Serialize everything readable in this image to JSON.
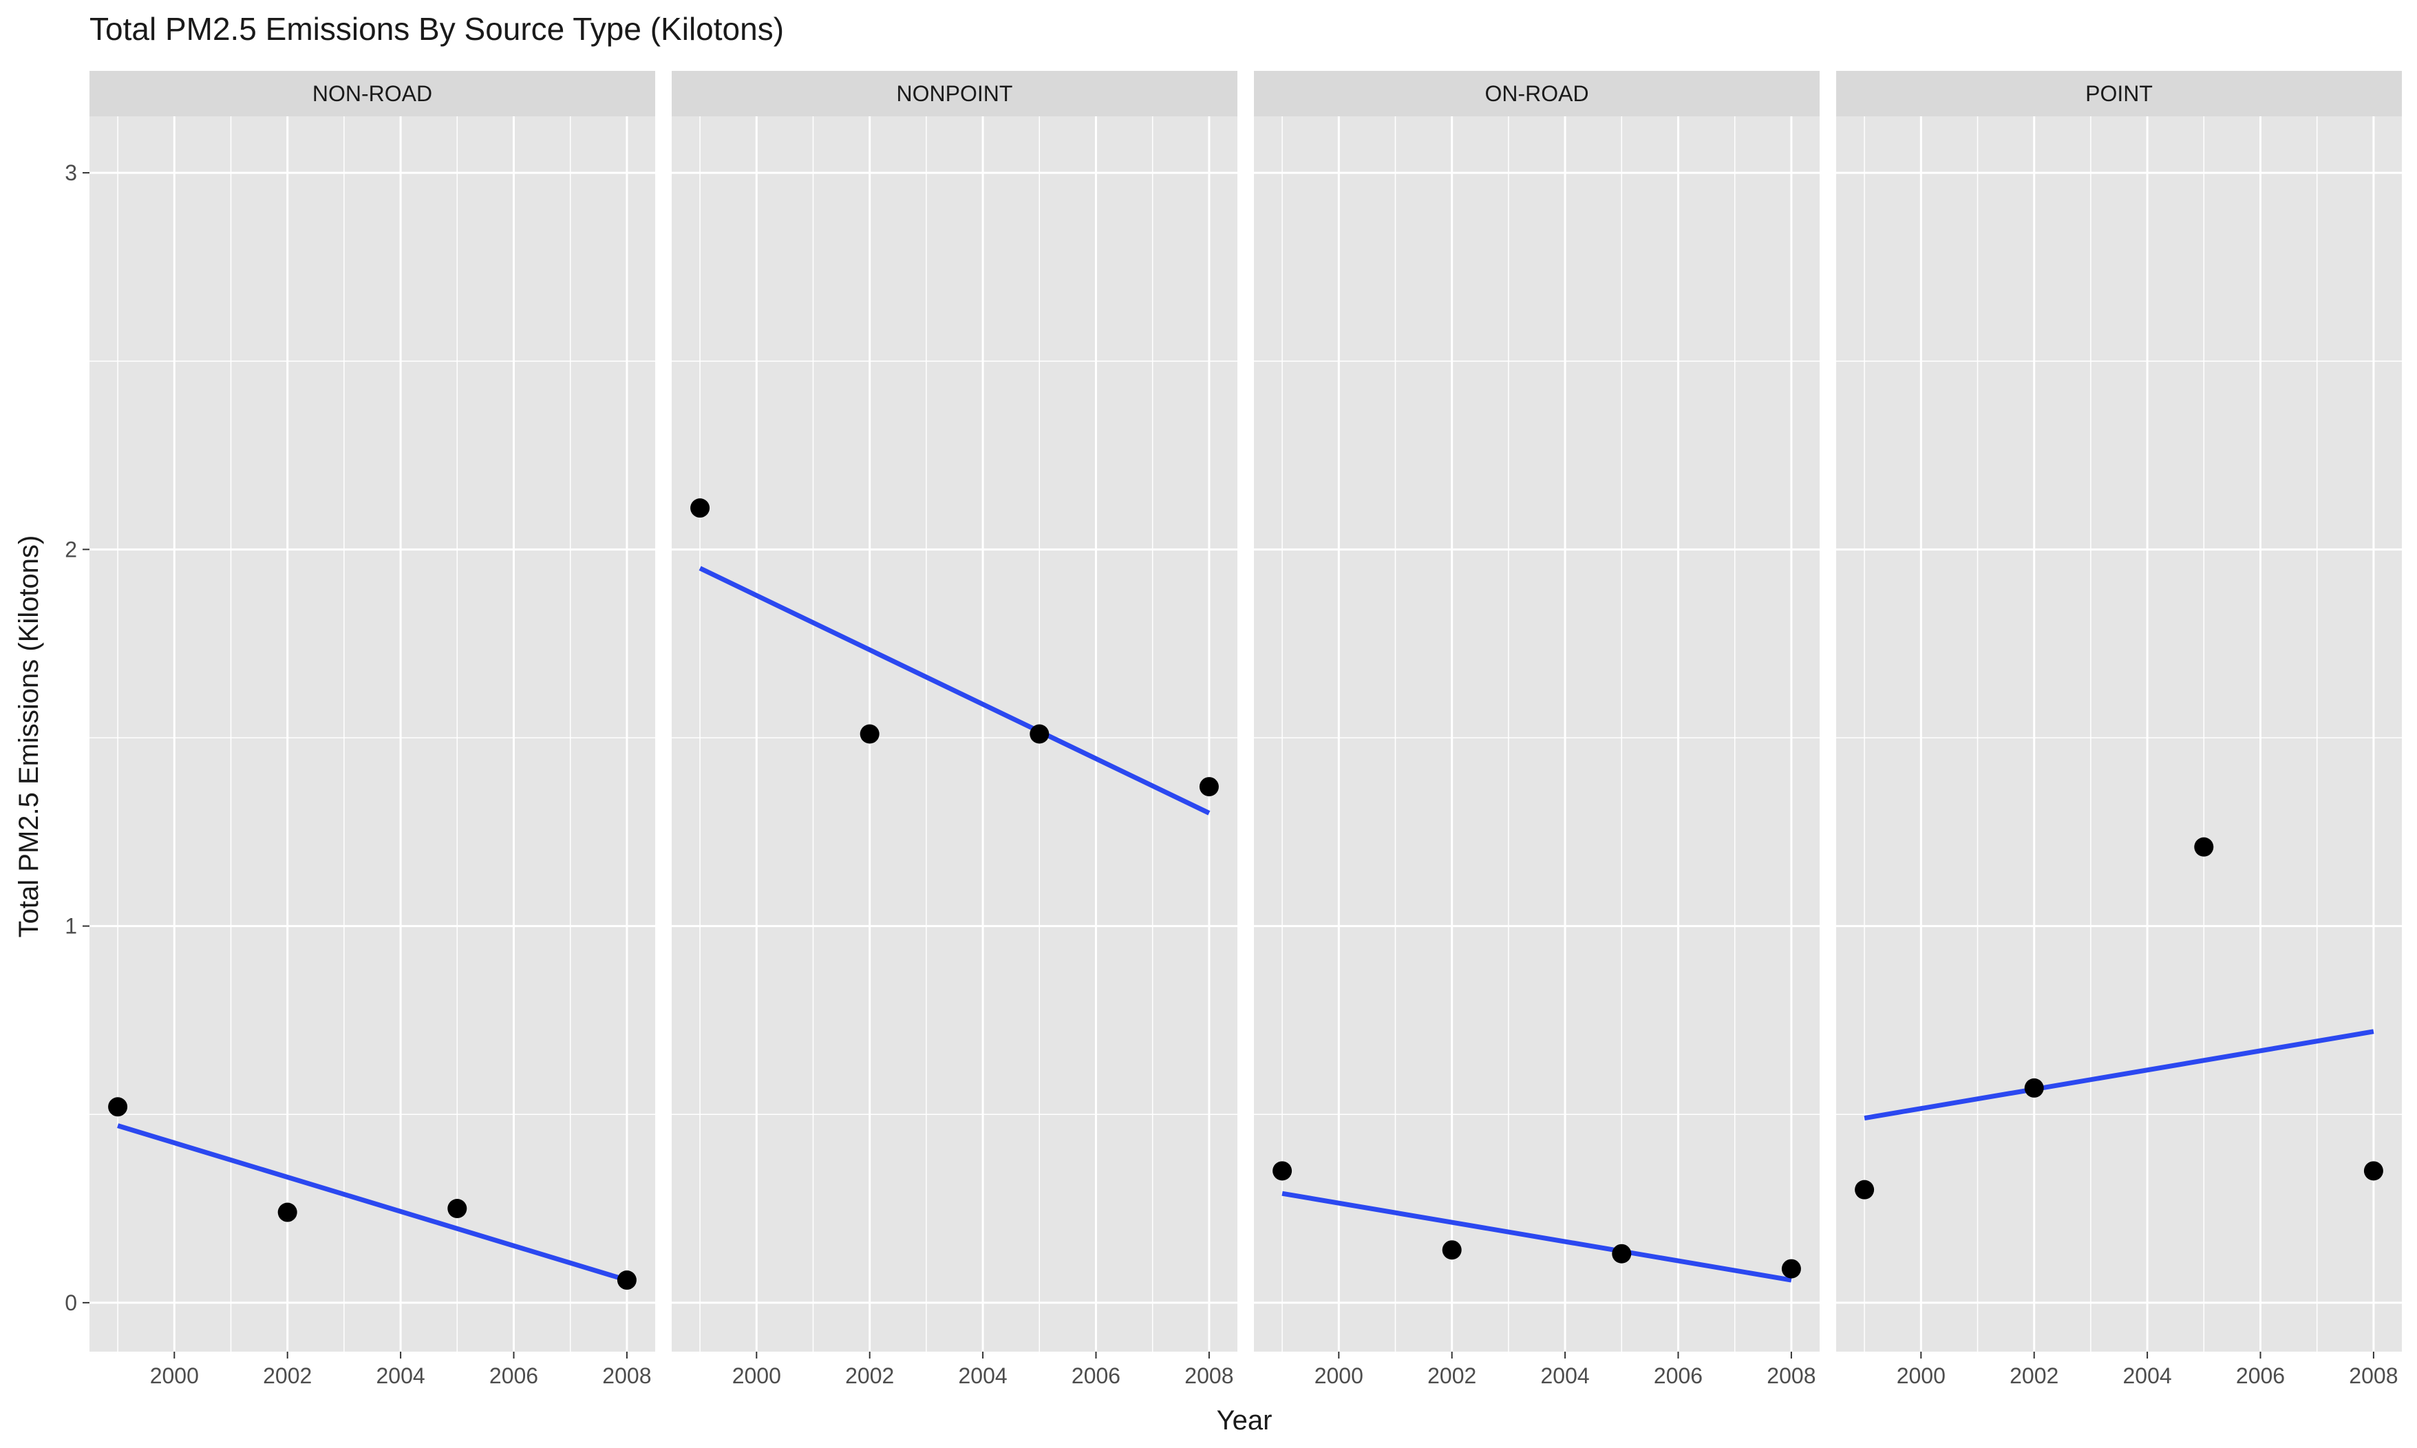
{
  "chart_data": {
    "type": "scatter",
    "title": "Total PM2.5 Emissions By Source Type (Kilotons)",
    "xlabel": "Year",
    "ylabel": "Total PM2.5 Emissions (Kilotons)",
    "xlim": [
      1998.5,
      2008.5
    ],
    "ylim": [
      -0.13,
      3.15
    ],
    "x_ticks": [
      2000,
      2002,
      2004,
      2006,
      2008
    ],
    "y_ticks": [
      0,
      1,
      2,
      3
    ],
    "x_tick_labels": [
      "2000",
      "2002",
      "2004",
      "2006",
      "2008"
    ],
    "y_tick_labels": [
      "0",
      "1",
      "2",
      "3"
    ],
    "grid": true,
    "legend": "none",
    "colors": {
      "panel_background": "#e5e5e5",
      "strip_background": "#d9d9d9",
      "grid": "#ffffff",
      "points": "#000000",
      "trend_line": "#2b48f0",
      "text": "#1a1a1a",
      "tick_text": "#4d4d4d"
    },
    "panels": [
      {
        "label": "NON-ROAD",
        "x": [
          1999,
          2002,
          2005,
          2008
        ],
        "y": [
          0.52,
          0.24,
          0.25,
          0.06
        ],
        "trend": {
          "x": [
            1999,
            2008
          ],
          "y": [
            0.47,
            0.06
          ]
        }
      },
      {
        "label": "NONPOINT",
        "x": [
          1999,
          2002,
          2005,
          2008
        ],
        "y": [
          2.11,
          1.51,
          1.51,
          1.37
        ],
        "trend": {
          "x": [
            1999,
            2008
          ],
          "y": [
            1.95,
            1.3
          ]
        }
      },
      {
        "label": "ON-ROAD",
        "x": [
          1999,
          2002,
          2005,
          2008
        ],
        "y": [
          0.35,
          0.14,
          0.13,
          0.09
        ],
        "trend": {
          "x": [
            1999,
            2008
          ],
          "y": [
            0.29,
            0.06
          ]
        }
      },
      {
        "label": "POINT",
        "x": [
          1999,
          2002,
          2005,
          2008
        ],
        "y": [
          0.3,
          0.57,
          1.21,
          0.35
        ],
        "trend": {
          "x": [
            1999,
            2008
          ],
          "y": [
            0.49,
            0.72
          ]
        }
      }
    ]
  }
}
